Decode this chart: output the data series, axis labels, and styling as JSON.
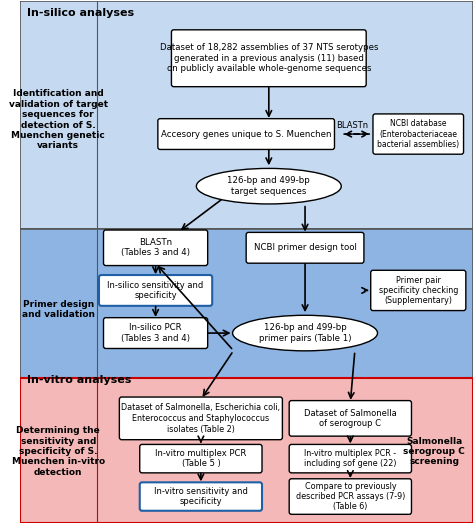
{
  "fig_width": 4.74,
  "fig_height": 5.24,
  "dpi": 100,
  "bg_top": "#b8cce4",
  "bg_mid": "#7fa8d0",
  "bg_bot": "#f4b8b8",
  "border_color": "#333333",
  "title_insilico": "In-silico analyses",
  "title_invitro": "In-vitro analyses",
  "box1_text": "Dataset of 18,282 assemblies of 37 NTS serotypes\ngenerated in a previous analysis (11) based\non publicly available whole-genome sequences",
  "box2_text": "Accesory genes unique to S. Muenchen",
  "ellipse1_text": "126-bp and 499-bp\ntarget sequences",
  "box3_text": "BLASTn\n(Tables 3 and 4)",
  "box4_text": "In-silico sensitivity and\nspecificity",
  "box5_text": "In-silico PCR\n(Tables 3 and 4)",
  "box6_text": "NCBI primer design tool",
  "ellipse2_text": "126-bp and 499-bp\nprimer pairs (Table 1)",
  "box7_text": "Primer pair\nspecificity checking\n(Supplementary)",
  "box8_text": "NCBI database\n(Enterobacteriaceae\nbacterial assemblies)",
  "blastn_label": "BLASTn",
  "left_label1": "Identification and\nvalidation of target\nsequences for\ndetection of S.\nMuenchen genetic\nvariants",
  "left_label2": "Primer design\nand validation",
  "box9_text": "Dataset of Salmonella, Escherichia coli,\nEnterococcus and Staphylococcus\nisolates (Table 2)",
  "box10_text": "Dataset of Salmonella\nof serogroup C",
  "box11_text": "In-vitro multiplex PCR\n(Table 5 )",
  "box12_text": "In-vitro multiplex PCR -\nincluding sof gene (22)",
  "box13_text": "In-vitro sensitivity and\nspecificity",
  "box14_text": "Compare to previously\ndescribed PCR assays (7-9)\n(Table 6)",
  "left_label3": "Determining the\nsensitivity and\nspecificity of S.\nMuenchen in-vitro\ndetection",
  "right_label": "Salmonella\nserogroup C\nscreening"
}
